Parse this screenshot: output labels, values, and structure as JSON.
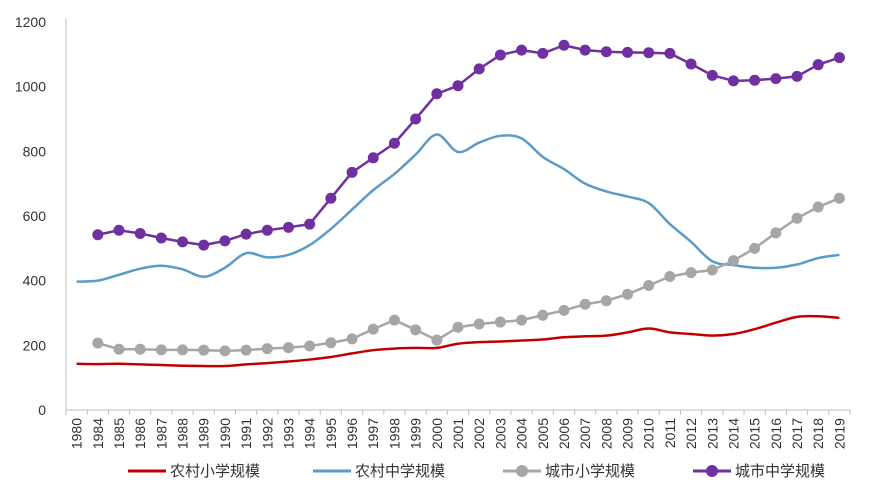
{
  "chart_data": {
    "type": "line",
    "title": "",
    "xlabel": "",
    "ylabel": "",
    "ylim": [
      0,
      1200
    ],
    "y_ticks": [
      0,
      200,
      400,
      600,
      800,
      1000,
      1200
    ],
    "grid": false,
    "legend_position": "bottom",
    "categories": [
      "1980",
      "1984",
      "1985",
      "1986",
      "1987",
      "1988",
      "1989",
      "1990",
      "1991",
      "1992",
      "1993",
      "1994",
      "1995",
      "1996",
      "1997",
      "1998",
      "1999",
      "2000",
      "2001",
      "2002",
      "2003",
      "2004",
      "2005",
      "2006",
      "2007",
      "2008",
      "2009",
      "2010",
      "2011",
      "2012",
      "2013",
      "2014",
      "2015",
      "2016",
      "2017",
      "2018",
      "2019"
    ],
    "series": [
      {
        "name": "农村小学规模",
        "color": "#c00000",
        "marker": "none",
        "smooth": true,
        "values": [
          143,
          142,
          143,
          141,
          139,
          137,
          136,
          136,
          141,
          145,
          150,
          156,
          164,
          175,
          185,
          190,
          192,
          192,
          205,
          210,
          212,
          215,
          218,
          225,
          228,
          230,
          240,
          252,
          240,
          235,
          230,
          235,
          250,
          270,
          288,
          290,
          285
        ]
      },
      {
        "name": "农村中学规模",
        "color": "#5b9bc8",
        "marker": "none",
        "smooth": true,
        "values": [
          397,
          400,
          418,
          437,
          446,
          435,
          412,
          440,
          485,
          472,
          480,
          510,
          560,
          620,
          680,
          730,
          790,
          852,
          798,
          827,
          848,
          840,
          783,
          745,
          700,
          676,
          660,
          640,
          575,
          520,
          460,
          448,
          440,
          440,
          450,
          470,
          480
        ]
      },
      {
        "name": "城市小学规模",
        "color": "#a6a6a6",
        "marker": "circle",
        "smooth": false,
        "start_index": 1,
        "values": [
          null,
          207,
          188,
          188,
          186,
          186,
          185,
          183,
          185,
          190,
          193,
          198,
          208,
          220,
          250,
          278,
          248,
          216,
          256,
          266,
          272,
          278,
          293,
          308,
          327,
          338,
          358,
          385,
          413,
          425,
          433,
          462,
          500,
          548,
          593,
          628,
          655
        ]
      },
      {
        "name": "城市中学规模",
        "color": "#7030a0",
        "marker": "circle",
        "smooth": false,
        "start_index": 1,
        "values": [
          null,
          542,
          556,
          546,
          532,
          520,
          510,
          523,
          544,
          556,
          565,
          575,
          655,
          735,
          780,
          825,
          900,
          978,
          1003,
          1055,
          1098,
          1113,
          1103,
          1128,
          1113,
          1108,
          1106,
          1105,
          1103,
          1070,
          1035,
          1018,
          1020,
          1025,
          1032,
          1068,
          1090
        ]
      }
    ]
  }
}
